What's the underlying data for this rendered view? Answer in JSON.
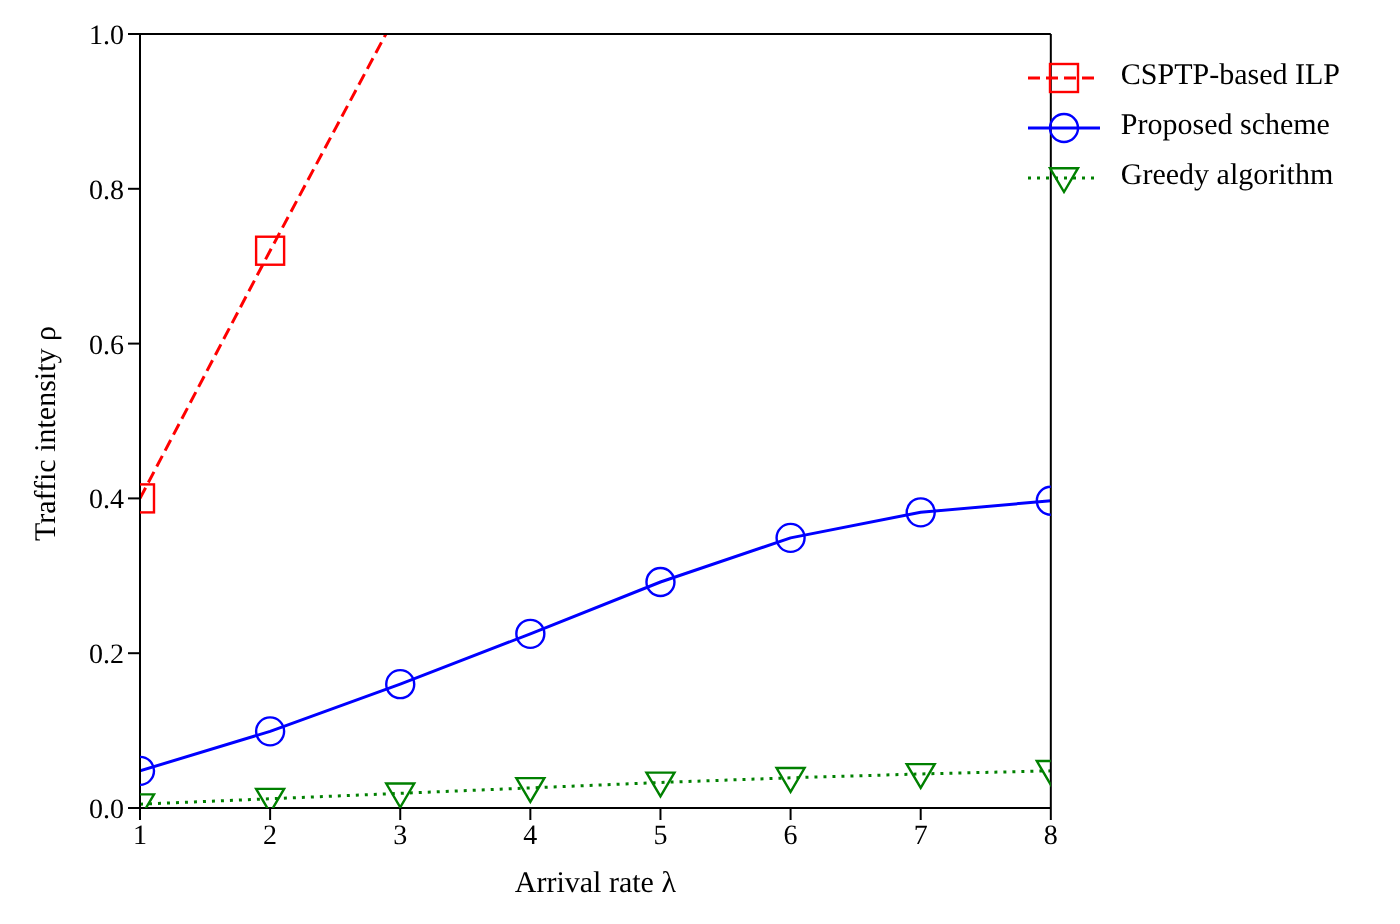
{
  "chart_data": {
    "type": "line",
    "xlabel": "Arrival rate λ",
    "ylabel": "Traffic intensity ρ",
    "xlim": [
      1,
      8
    ],
    "xticks": [
      1,
      2,
      3,
      4,
      5,
      6,
      7,
      8
    ],
    "ylim": [
      0,
      1
    ],
    "yticks": [
      {
        "value": 0,
        "label": "0.0"
      },
      {
        "value": 0.2,
        "label": "0.2"
      },
      {
        "value": 0.4,
        "label": "0.4"
      },
      {
        "value": 0.6,
        "label": "0.6"
      },
      {
        "value": 0.8,
        "label": "0.8"
      },
      {
        "value": 1,
        "label": "1.0"
      }
    ],
    "grid": false,
    "legend": "top right",
    "series": [
      {
        "name": "CSPTP-based ILP",
        "color": "#ff0000",
        "marker": "square",
        "line_style": "dashed",
        "x": [
          1,
          2,
          2.89
        ],
        "values": [
          0.4,
          0.72,
          1.0
        ]
      },
      {
        "name": "Proposed scheme",
        "color": "#0000ff",
        "marker": "circle",
        "line_style": "solid",
        "x": [
          1,
          2,
          3,
          4,
          5,
          6,
          7,
          8
        ],
        "values": [
          0.048,
          0.099,
          0.16,
          0.225,
          0.292,
          0.349,
          0.382,
          0.397
        ]
      },
      {
        "name": "Greedy algorithm",
        "color": "#008000",
        "marker": "triangle",
        "line_style": "dotted",
        "x": [
          1,
          2,
          3,
          4,
          5,
          6,
          7,
          8
        ],
        "values": [
          0.005,
          0.012,
          0.019,
          0.026,
          0.033,
          0.039,
          0.044,
          0.048
        ]
      }
    ]
  }
}
